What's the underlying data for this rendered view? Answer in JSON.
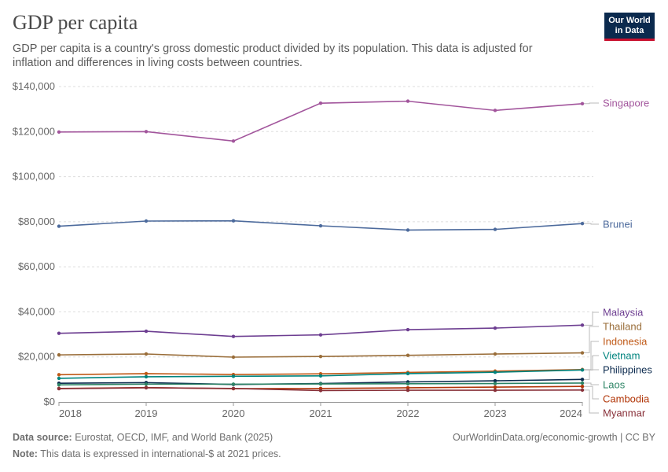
{
  "header": {
    "title": "GDP per capita",
    "subtitle": "GDP per capita is a country's gross domestic product divided by its population. This data is adjusted for inflation and differences in living costs between countries.",
    "logo_line1": "Our World",
    "logo_line2": "in Data"
  },
  "footer": {
    "source_label": "Data source:",
    "source_text": "Eurostat, OECD, IMF, and World Bank (2025)",
    "note_label": "Note:",
    "note_text": "This data is expressed in international-$ at 2021 prices.",
    "url": "OurWorldinData.org/economic-growth | CC BY"
  },
  "chart_data": {
    "type": "line",
    "title": "GDP per capita",
    "xlabel": "",
    "ylabel": "",
    "x": [
      2018,
      2019,
      2020,
      2021,
      2022,
      2023,
      2024
    ],
    "ylim": [
      0,
      140000
    ],
    "yticks": [
      0,
      20000,
      40000,
      60000,
      80000,
      100000,
      120000,
      140000
    ],
    "ytick_labels": [
      "$0",
      "$20,000",
      "$40,000",
      "$60,000",
      "$80,000",
      "$100,000",
      "$120,000",
      "$140,000"
    ],
    "grid": "horizontal dashed",
    "legend": "right, inline labels",
    "series": [
      {
        "name": "Singapore",
        "color": "#a2559c",
        "values": [
          119800,
          120000,
          115800,
          132600,
          133500,
          129400,
          132400
        ]
      },
      {
        "name": "Brunei",
        "color": "#4c6a9c",
        "values": [
          78000,
          80300,
          80400,
          78200,
          76300,
          76600,
          79200
        ]
      },
      {
        "name": "Malaysia",
        "color": "#6d3e91",
        "values": [
          30500,
          31400,
          29100,
          29800,
          32100,
          32800,
          34100
        ]
      },
      {
        "name": "Thailand",
        "color": "#996d39",
        "values": [
          20900,
          21300,
          19900,
          20200,
          20700,
          21300,
          21800
        ]
      },
      {
        "name": "Indonesia",
        "color": "#c05917",
        "values": [
          12100,
          12600,
          12200,
          12500,
          13100,
          13700,
          14400
        ]
      },
      {
        "name": "Vietnam",
        "color": "#00847e",
        "values": [
          10500,
          11200,
          11400,
          11600,
          12600,
          13200,
          14200
        ]
      },
      {
        "name": "Philippines",
        "color": "#0b2a4e",
        "values": [
          8300,
          8600,
          7800,
          8200,
          8900,
          9400,
          10000
        ]
      },
      {
        "name": "Laos",
        "color": "#2c8465",
        "values": [
          7600,
          7900,
          7900,
          8000,
          8100,
          8200,
          8400
        ]
      },
      {
        "name": "Cambodia",
        "color": "#b13507",
        "values": [
          6000,
          6400,
          5900,
          6000,
          6300,
          6600,
          6900
        ]
      },
      {
        "name": "Myanmar",
        "color": "#883039",
        "values": [
          5900,
          6300,
          6000,
          5100,
          5200,
          5200,
          5300
        ]
      }
    ]
  }
}
